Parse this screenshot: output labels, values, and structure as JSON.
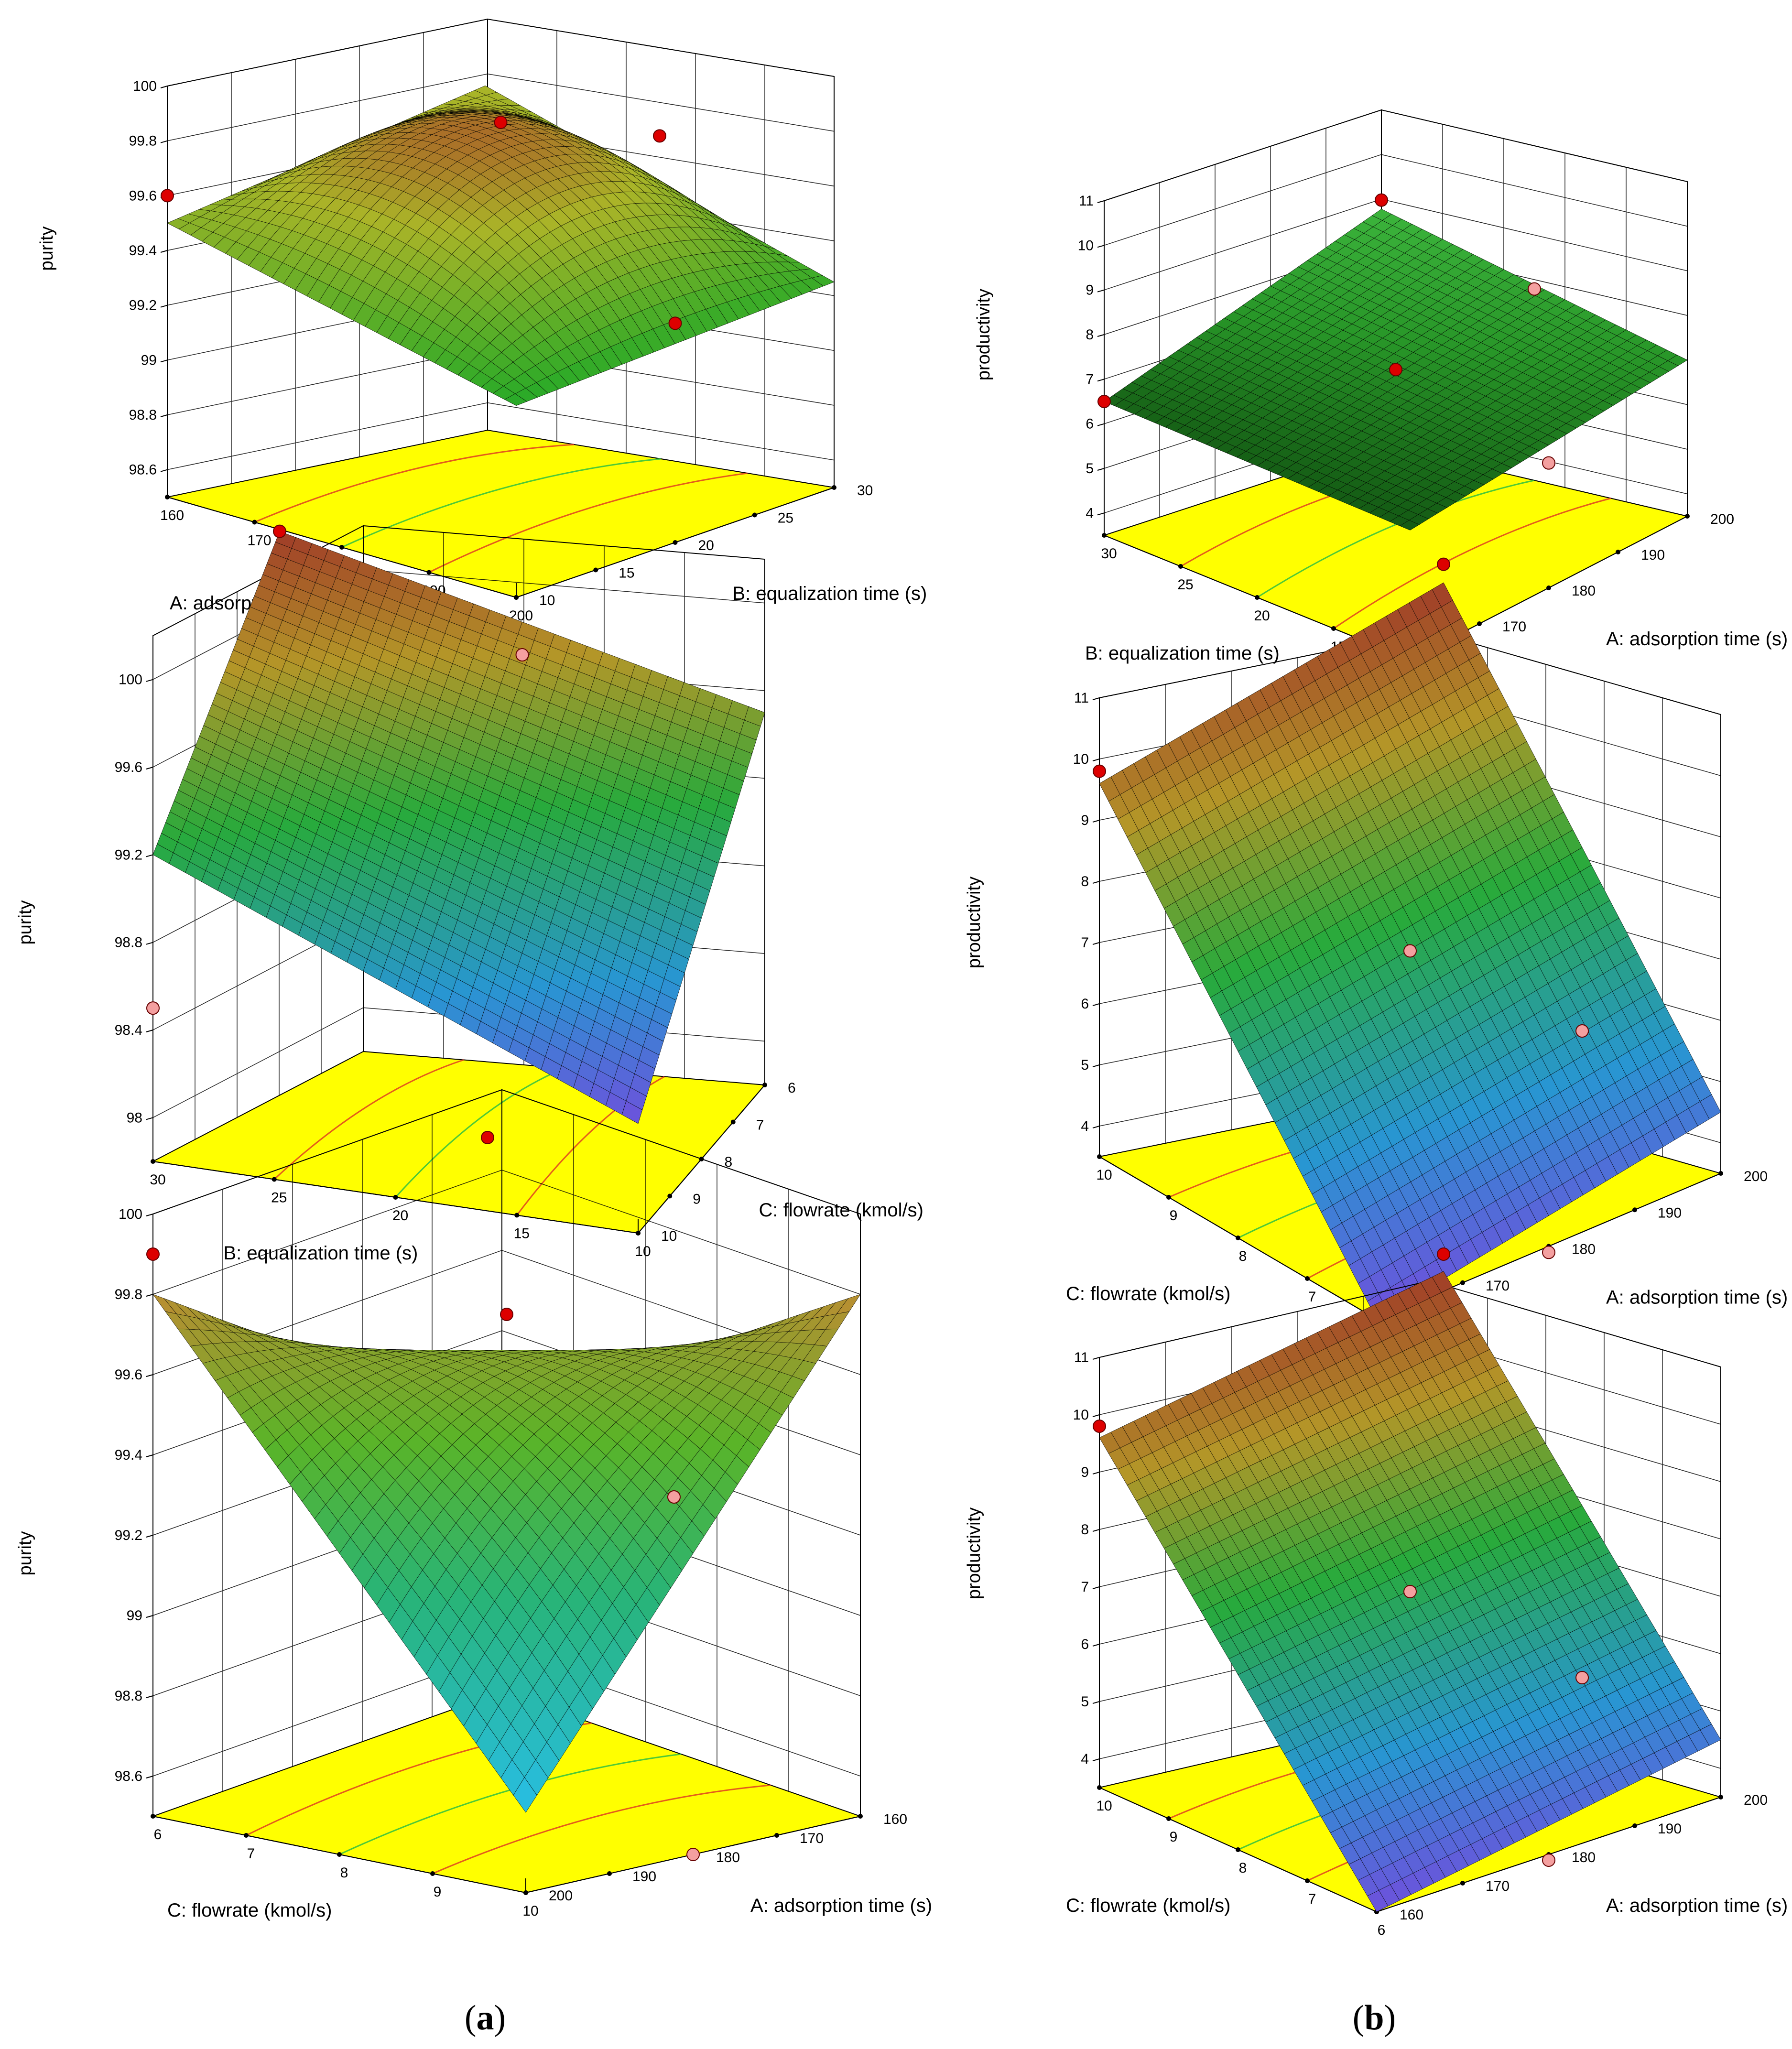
{
  "panel_labels": {
    "a": "a",
    "b": "b"
  },
  "chart_data": [
    {
      "type": "surface3d",
      "zlabel": "purity",
      "zticks": [
        "98.6",
        "98.8",
        "99",
        "99.2",
        "99.4",
        "99.6",
        "99.8",
        "100"
      ],
      "zlim": [
        98.5,
        100
      ],
      "left_axis": {
        "label": "A: adsorption time (s)",
        "ticks": [
          "160",
          "170",
          "180",
          "190",
          "200"
        ],
        "range": [
          160,
          200
        ]
      },
      "right_axis": {
        "label": "B: equalization time (s)",
        "ticks": [
          "10",
          "15",
          "20",
          "25",
          "30"
        ],
        "range": [
          10,
          30
        ]
      },
      "surface_corners": {
        "left_back": 99.5,
        "left_front": 99.2,
        "right_back": 99.6,
        "right_front": 99.25
      },
      "surface_peak": 100.0,
      "colormap": "green-yellow-brown",
      "design_points": [
        {
          "z": 99.6,
          "pos": "left"
        },
        {
          "z": 99.85,
          "pos": "center"
        },
        {
          "z": 99.3,
          "pos": "front"
        },
        {
          "z": 99.6,
          "pos": "right"
        }
      ]
    },
    {
      "type": "surface3d",
      "zlabel": "productivity",
      "zticks": [
        "4",
        "5",
        "6",
        "7",
        "8",
        "9",
        "10",
        "11"
      ],
      "zlim": [
        3.5,
        11
      ],
      "left_axis": {
        "label": "B: equalization time (s)",
        "ticks": [
          "30",
          "25",
          "20",
          "15",
          "10"
        ],
        "range": [
          30,
          10
        ]
      },
      "right_axis": {
        "label": "A: adsorption time (s)",
        "ticks": [
          "160",
          "170",
          "180",
          "190",
          "200"
        ],
        "range": [
          160,
          200
        ]
      },
      "surface_corners": {
        "left_back": 6.5,
        "left_front": 6.4,
        "right_back": 7.6,
        "right_front": 7.0
      },
      "surface_peak": 7.6,
      "colormap": "green",
      "design_points": [
        {
          "z": 6.5,
          "pos": "left"
        },
        {
          "z": 7.0,
          "pos": "center"
        },
        {
          "z": 6.3,
          "pos": "front"
        },
        {
          "z": 7.2,
          "pos": "right"
        },
        {
          "z": 7.8,
          "pos": "back"
        }
      ]
    },
    {
      "type": "surface3d",
      "zlabel": "purity",
      "zticks": [
        "98",
        "98.4",
        "98.8",
        "99.2",
        "99.6",
        "100"
      ],
      "zlim": [
        97.8,
        100.2
      ],
      "left_axis": {
        "label": "B: equalization time (s)",
        "ticks": [
          "30",
          "25",
          "20",
          "15",
          "10"
        ],
        "range": [
          30,
          10
        ]
      },
      "right_axis": {
        "label": "C: flowrate (kmol/s)",
        "ticks": [
          "10",
          "9",
          "8",
          "7",
          "6"
        ],
        "range": [
          10,
          6
        ]
      },
      "surface_corners": {
        "left_back": 99.2,
        "left_front": 98.3,
        "right_back": 100.0,
        "right_front": 99.5
      },
      "surface_peak": 100.0,
      "colormap": "blue-green-brown",
      "design_points": [
        {
          "z": 98.5,
          "pos": "left"
        },
        {
          "z": 100.0,
          "pos": "back"
        },
        {
          "z": 99.6,
          "pos": "right"
        }
      ]
    },
    {
      "type": "surface3d",
      "zlabel": "productivity",
      "zticks": [
        "4",
        "5",
        "6",
        "7",
        "8",
        "9",
        "10",
        "11"
      ],
      "zlim": [
        3.5,
        11
      ],
      "left_axis": {
        "label": "C: flowrate (kmol/s)",
        "ticks": [
          "10",
          "9",
          "8",
          "7",
          "6"
        ],
        "range": [
          10,
          6
        ]
      },
      "right_axis": {
        "label": "A: adsorption time (s)",
        "ticks": [
          "160",
          "170",
          "180",
          "190",
          "200"
        ],
        "range": [
          160,
          200
        ]
      },
      "surface_corners": {
        "left_back": 9.6,
        "left_front": 3.5,
        "right_back": 10.5,
        "right_front": 4.5
      },
      "surface_peak": 10.5,
      "colormap": "blue-green-brown",
      "design_points": [
        {
          "z": 9.8,
          "pos": "left"
        },
        {
          "z": 10.8,
          "pos": "back"
        },
        {
          "z": 7.0,
          "pos": "center"
        },
        {
          "z": 4.5,
          "pos": "right"
        },
        {
          "z": 3.4,
          "pos": "front"
        }
      ]
    },
    {
      "type": "surface3d",
      "zlabel": "purity",
      "zticks": [
        "98.6",
        "98.8",
        "99",
        "99.2",
        "99.4",
        "99.6",
        "99.8",
        "100"
      ],
      "zlim": [
        98.5,
        100
      ],
      "left_axis": {
        "label": "C: flowrate (kmol/s)",
        "ticks": [
          "6",
          "7",
          "8",
          "9",
          "10"
        ],
        "range": [
          6,
          10
        ]
      },
      "right_axis": {
        "label": "A: adsorption time (s)",
        "ticks": [
          "200",
          "190",
          "180",
          "170",
          "160"
        ],
        "range": [
          200,
          160
        ]
      },
      "surface_corners": {
        "left_back": 99.8,
        "left_front": 98.7,
        "right_back": 99.3,
        "right_front": 99.8
      },
      "surface_peak": 100.0,
      "colormap": "cyan-green-brown",
      "design_points": [
        {
          "z": 99.9,
          "pos": "left"
        },
        {
          "z": 100.0,
          "pos": "back"
        },
        {
          "z": 99.75,
          "pos": "center"
        },
        {
          "z": 99.2,
          "pos": "right"
        },
        {
          "z": 98.5,
          "pos": "front"
        }
      ]
    },
    {
      "type": "surface3d",
      "zlabel": "productivity",
      "zticks": [
        "4",
        "5",
        "6",
        "7",
        "8",
        "9",
        "10",
        "11"
      ],
      "zlim": [
        3.5,
        11
      ],
      "left_axis": {
        "label": "C: flowrate (kmol/s)",
        "ticks": [
          "10",
          "9",
          "8",
          "7",
          "6"
        ],
        "range": [
          10,
          6
        ]
      },
      "right_axis": {
        "label": "A: adsorption time (s)",
        "ticks": [
          "160",
          "170",
          "180",
          "190",
          "200"
        ],
        "range": [
          160,
          200
        ]
      },
      "surface_corners": {
        "left_back": 9.6,
        "left_front": 3.5,
        "right_back": 10.5,
        "right_front": 4.5
      },
      "surface_peak": 10.5,
      "colormap": "blue-green-brown",
      "design_points": [
        {
          "z": 9.8,
          "pos": "left"
        },
        {
          "z": 10.8,
          "pos": "back"
        },
        {
          "z": 7.0,
          "pos": "center"
        },
        {
          "z": 4.5,
          "pos": "right"
        },
        {
          "z": 3.4,
          "pos": "front"
        }
      ]
    }
  ]
}
